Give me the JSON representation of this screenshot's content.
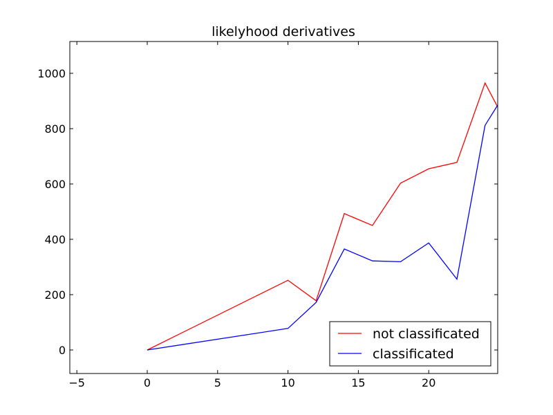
{
  "chart_data": {
    "type": "line",
    "title": "likelyhood derivatives",
    "xlabel": "",
    "ylabel": "",
    "xlim": [
      -5.5,
      24.9
    ],
    "ylim": [
      -85,
      1115
    ],
    "xticks": [
      -5,
      0,
      5,
      10,
      15,
      20
    ],
    "yticks": [
      0,
      200,
      400,
      600,
      800,
      1000
    ],
    "grid": false,
    "legend_position": "lower-right",
    "series": [
      {
        "name": "not classificated",
        "color": "#ff0000",
        "x": [
          0,
          10,
          12,
          14,
          16,
          18,
          20,
          22,
          24,
          24.9
        ],
        "y": [
          0,
          252,
          178,
          493,
          450,
          603,
          655,
          678,
          965,
          878
        ]
      },
      {
        "name": "classificated",
        "color": "#0000ff",
        "x": [
          0,
          10,
          12,
          14,
          16,
          18,
          20,
          22,
          24,
          24.9
        ],
        "y": [
          0,
          78,
          172,
          365,
          322,
          319,
          387,
          256,
          812,
          885
        ]
      }
    ]
  }
}
